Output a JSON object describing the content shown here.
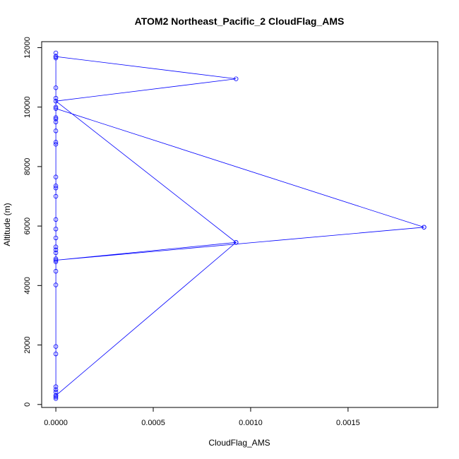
{
  "chart_data": {
    "type": "line",
    "title": "ATOM2 Northeast_Pacific_2 CloudFlag_AMS",
    "xlabel": "CloudFlag_AMS",
    "ylabel": "Altitude (m)",
    "xlim": [
      -7.28e-05,
      0.0019608
    ],
    "ylim": [
      -100,
      12200
    ],
    "x_ticks": [
      0,
      0.0005,
      0.001,
      0.0015
    ],
    "x_tick_labels": [
      "0.0000",
      "0.0005",
      "0.0010",
      "0.0015"
    ],
    "y_ticks": [
      0,
      2000,
      4000,
      6000,
      8000,
      10000,
      12000
    ],
    "y_tick_labels": [
      "0",
      "2000",
      "4000",
      "6000",
      "8000",
      "10000",
      "12000"
    ],
    "grid": false,
    "legend": "none",
    "series": [
      {
        "color": "#0000ff",
        "marker": "open-circle",
        "points": [
          [
            0,
            200
          ],
          [
            0,
            300
          ],
          [
            0,
            250
          ],
          [
            0,
            500
          ],
          [
            0,
            420
          ],
          [
            0,
            600
          ],
          [
            0,
            1700
          ],
          [
            0,
            1950
          ],
          [
            0,
            4020
          ],
          [
            0,
            4480
          ],
          [
            0,
            4800
          ],
          [
            0,
            4900
          ],
          [
            0,
            5100
          ],
          [
            0,
            5200
          ],
          [
            0,
            5300
          ],
          [
            0,
            5600
          ],
          [
            0,
            5900
          ],
          [
            0,
            6220
          ],
          [
            0,
            7000
          ],
          [
            0,
            7280
          ],
          [
            0,
            7350
          ],
          [
            0,
            7650
          ],
          [
            0,
            8750
          ],
          [
            0,
            8820
          ],
          [
            0,
            9200
          ],
          [
            0,
            9500
          ],
          [
            0,
            9600
          ],
          [
            0,
            9650
          ],
          [
            0,
            10000
          ],
          [
            0,
            10300
          ],
          [
            0,
            10650
          ],
          [
            0,
            11650
          ],
          [
            0,
            11700
          ],
          [
            0,
            11820
          ],
          [
            0,
            11700
          ],
          [
            0.000925,
            10950
          ],
          [
            0,
            10200
          ],
          [
            0.000925,
            5450
          ],
          [
            0,
            300
          ],
          [
            0.000925,
            5450
          ],
          [
            0,
            4850
          ],
          [
            0.00189,
            5960
          ],
          [
            0,
            9950
          ],
          [
            0.00189,
            5960
          ]
        ]
      }
    ]
  }
}
